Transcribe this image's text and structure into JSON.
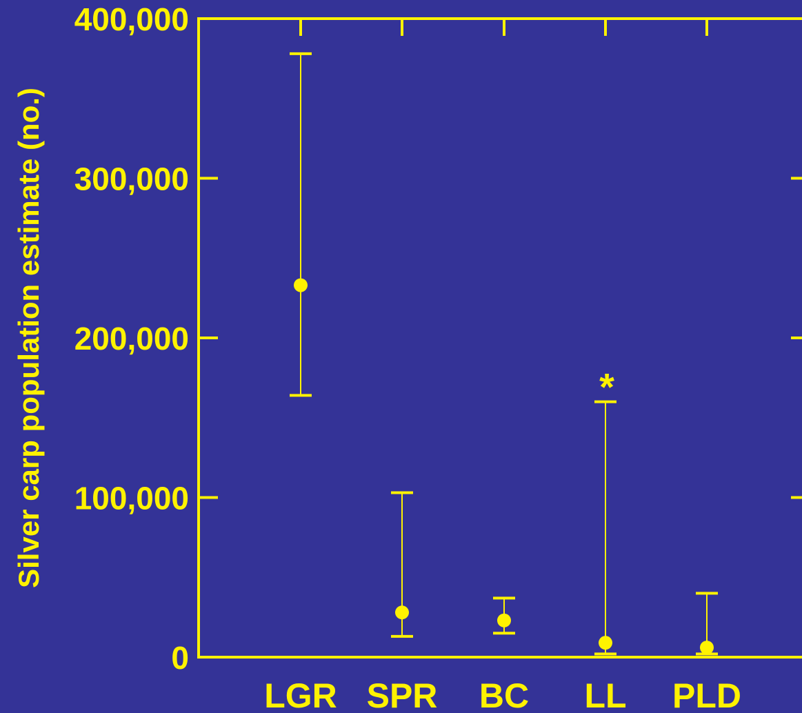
{
  "colors": {
    "background": "#343397",
    "foreground": "#FFF200"
  },
  "chart_data": {
    "type": "scatter",
    "title": "",
    "xlabel": "",
    "ylabel": "Silver carp population estimate (no.)",
    "ylim": [
      0,
      400000
    ],
    "y_ticks": [
      0,
      100000,
      200000,
      300000,
      400000
    ],
    "y_tick_labels": [
      "0",
      "100,000",
      "200,000",
      "300,000",
      "400,000"
    ],
    "categories": [
      "LGR",
      "SPR",
      "BC",
      "LL",
      "PLD"
    ],
    "points": [
      {
        "category": "LGR",
        "value": 233000,
        "lower": 164000,
        "upper": 378000,
        "annotation": ""
      },
      {
        "category": "SPR",
        "value": 28000,
        "lower": 13000,
        "upper": 103000,
        "annotation": ""
      },
      {
        "category": "BC",
        "value": 23000,
        "lower": 15000,
        "upper": 37000,
        "annotation": ""
      },
      {
        "category": "LL",
        "value": 9000,
        "lower": 2000,
        "upper": 160000,
        "annotation": "*"
      },
      {
        "category": "PLD",
        "value": 6000,
        "lower": 2000,
        "upper": 40000,
        "annotation": ""
      }
    ],
    "grid": false,
    "legend": "none"
  }
}
